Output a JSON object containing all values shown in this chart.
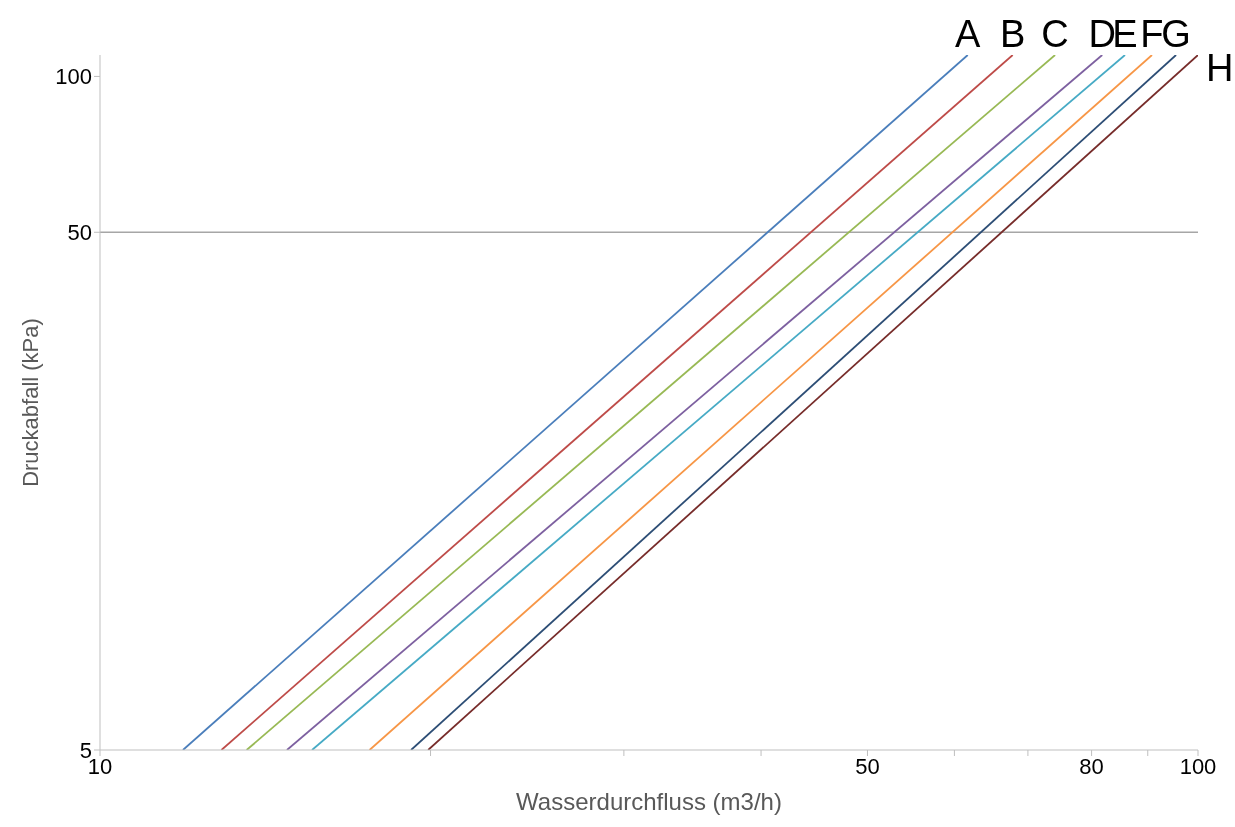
{
  "chart_data": {
    "type": "line",
    "xlabel": "Wasserdurchfluss (m3/h)",
    "ylabel": "Druckabfall (kPa)",
    "log": "xy",
    "xlim": [
      10,
      100
    ],
    "ylim": [
      5,
      110
    ],
    "xticks": [
      10,
      {
        "value": 20,
        "label": null
      },
      {
        "value": 30,
        "label": null
      },
      {
        "value": 40,
        "label": null
      },
      50,
      {
        "value": 60,
        "label": null
      },
      {
        "value": 70,
        "label": null
      },
      80,
      {
        "value": 90,
        "label": null
      },
      100
    ],
    "yticks": [
      5,
      50,
      100
    ],
    "grid": false,
    "legend": false,
    "marker": "none",
    "line_style": "solid",
    "ref_lines": [
      {
        "axis": "y",
        "value": 50,
        "color": "#a6a6a6"
      }
    ],
    "series": [
      {
        "name": "A",
        "color": "#4a7ebb",
        "x": [
          11.9,
          61.7
        ],
        "values": [
          5,
          110
        ]
      },
      {
        "name": "B",
        "color": "#be4b48",
        "x": [
          12.9,
          67.8
        ],
        "values": [
          5,
          110
        ]
      },
      {
        "name": "C",
        "color": "#98b954",
        "x": [
          13.6,
          74.1
        ],
        "values": [
          5,
          110
        ]
      },
      {
        "name": "D",
        "color": "#7d60a0",
        "x": [
          14.8,
          81.8
        ],
        "values": [
          5,
          110
        ]
      },
      {
        "name": "E",
        "color": "#46aac5",
        "x": [
          15.6,
          85.8
        ],
        "values": [
          5,
          110
        ]
      },
      {
        "name": "F",
        "color": "#f79646",
        "x": [
          17.6,
          90.8
        ],
        "values": [
          5,
          110
        ]
      },
      {
        "name": "G",
        "color": "#2c4d75",
        "x": [
          19.2,
          95.5
        ],
        "values": [
          5,
          110
        ]
      },
      {
        "name": "H",
        "color": "#772c2a",
        "x": [
          19.9,
          100
        ],
        "values": [
          5,
          110
        ]
      }
    ]
  }
}
